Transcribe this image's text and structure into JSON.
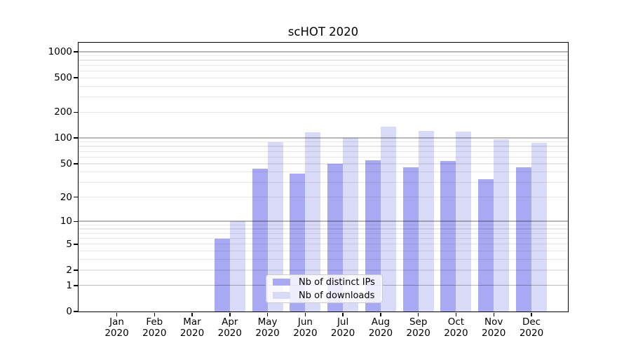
{
  "chart_data": {
    "type": "bar",
    "title": "scHOT 2020",
    "categories": [
      "Jan 2020",
      "Feb 2020",
      "Mar 2020",
      "Apr 2020",
      "May 2020",
      "Jun 2020",
      "Jul 2020",
      "Aug 2020",
      "Sep 2020",
      "Oct 2020",
      "Nov 2020",
      "Dec 2020"
    ],
    "series": [
      {
        "name": "Nb of distinct IPs",
        "color": "#a8a8f3",
        "values": [
          0,
          0,
          0,
          6,
          44,
          38,
          50,
          55,
          45,
          54,
          33,
          45
        ]
      },
      {
        "name": "Nb of downloads",
        "color": "#d9d9f8",
        "values": [
          0,
          0,
          0,
          10,
          90,
          116,
          100,
          136,
          122,
          118,
          96,
          88
        ]
      }
    ],
    "xlabel": "",
    "ylabel": "",
    "yticks": [
      0,
      1,
      2,
      5,
      10,
      20,
      50,
      100,
      200,
      500,
      1000
    ],
    "grid_major": [
      1,
      10,
      100,
      1000
    ],
    "grid_minor": [
      2,
      3,
      4,
      5,
      6,
      7,
      8,
      9,
      20,
      30,
      40,
      50,
      60,
      70,
      80,
      90,
      200,
      300,
      400,
      500,
      600,
      700,
      800,
      900
    ],
    "yscale": "log10(1+y)",
    "ylim": [
      0,
      1275
    ],
    "grid": "on",
    "legend_position": "lower center inside plot"
  },
  "colors": {
    "background": "#ffffff",
    "axis": "#000000",
    "grid_major": "#b8b8b8",
    "grid_minor": "#e9e9e9",
    "legend_border": "#cccccc"
  }
}
